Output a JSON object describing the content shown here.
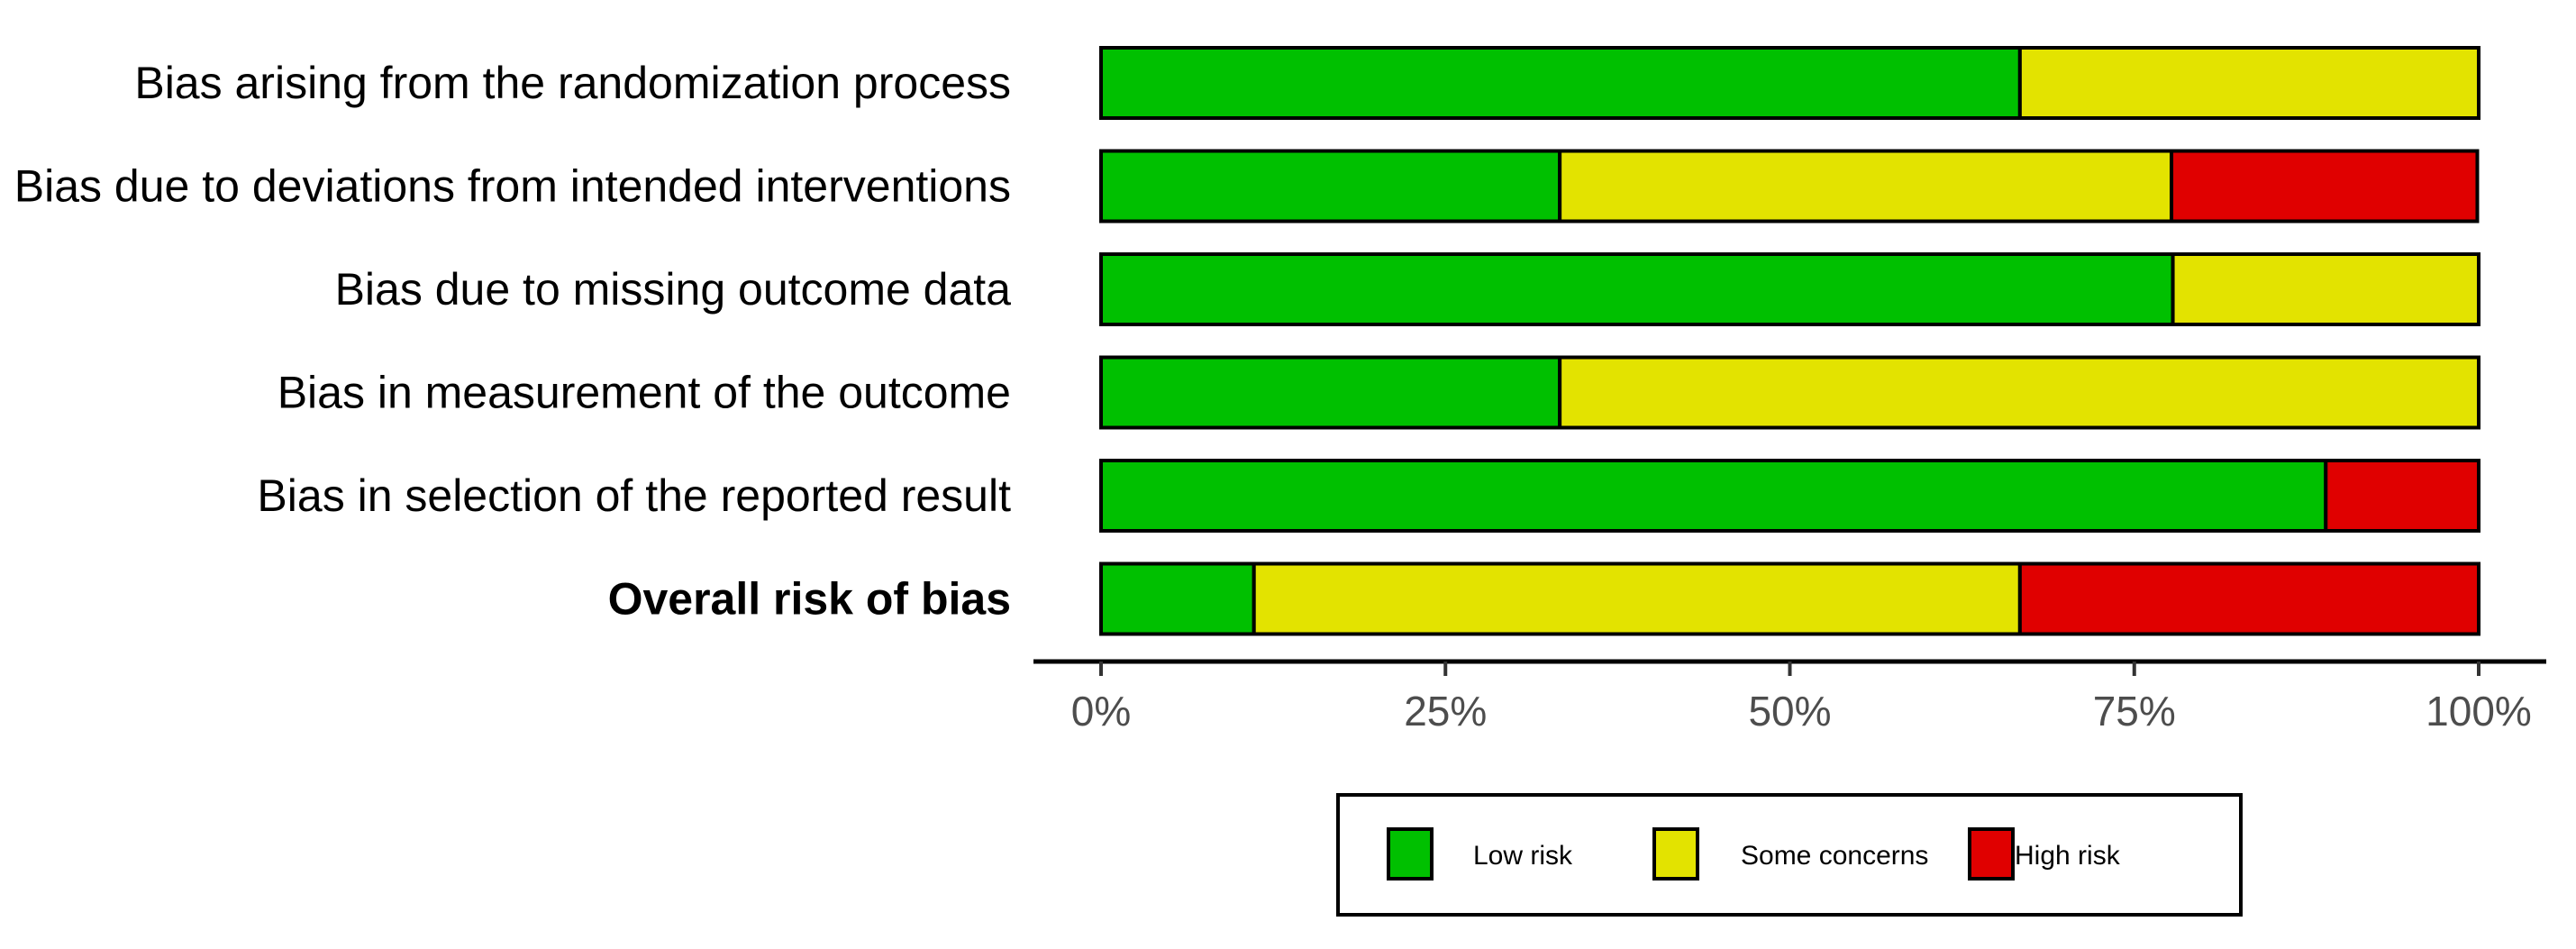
{
  "chart_data": {
    "type": "bar",
    "orientation": "horizontal",
    "stacked": true,
    "title": "",
    "xlabel": "",
    "ylabel": "",
    "xlim": [
      0,
      100
    ],
    "x_unit": "%",
    "grid": false,
    "legend_position": "bottom",
    "categories": [
      "Bias arising from the randomization process",
      "Bias due to deviations from intended interventions",
      "Bias due to missing outcome data",
      "Bias in measurement of the outcome",
      "Bias in selection of the reported result",
      "Overall risk of bias"
    ],
    "bold_categories": [
      "Overall risk of bias"
    ],
    "series": [
      {
        "name": "Low risk",
        "color": "#00c000",
        "values": [
          66.7,
          33.3,
          77.8,
          33.3,
          88.9,
          11.1
        ]
      },
      {
        "name": "Some concerns",
        "color": "#e3e300",
        "values": [
          33.3,
          44.4,
          22.2,
          66.7,
          0,
          55.6
        ]
      },
      {
        "name": "High risk",
        "color": "#e00000",
        "values": [
          0,
          22.2,
          0,
          0,
          11.1,
          33.3
        ]
      }
    ],
    "x_ticks": [
      {
        "value": 0,
        "label": "0%"
      },
      {
        "value": 25,
        "label": "25%"
      },
      {
        "value": 50,
        "label": "50%"
      },
      {
        "value": 75,
        "label": "75%"
      },
      {
        "value": 100,
        "label": "100%"
      }
    ],
    "legend": [
      "Low risk",
      "Some concerns",
      "High risk"
    ]
  }
}
